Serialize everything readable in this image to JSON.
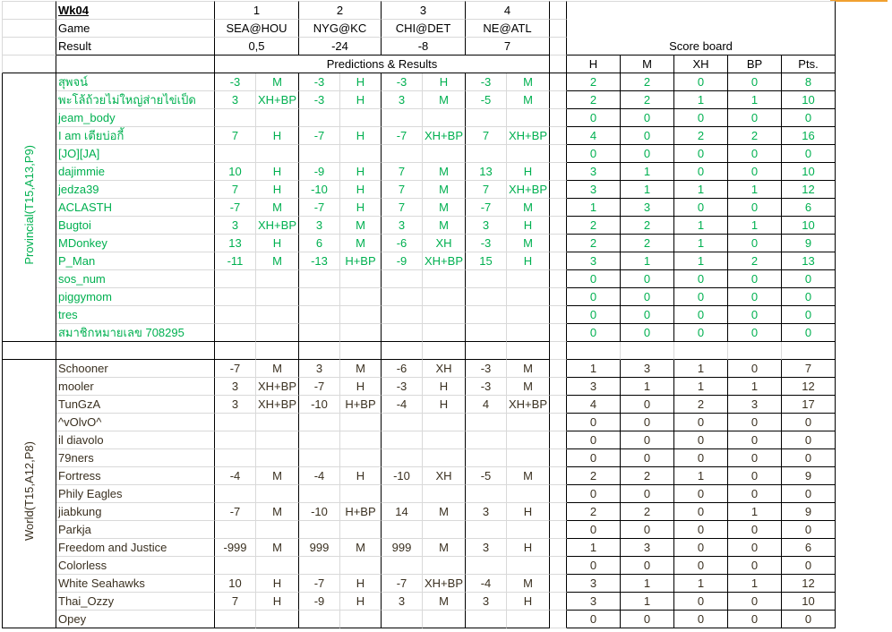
{
  "header": {
    "week": "Wk04",
    "game_label": "Game",
    "result_label": "Result",
    "predictions_label": "Predictions & Results",
    "scoreboard_title": "Score board",
    "scoreboard_columns": [
      "H",
      "M",
      "XH",
      "BP",
      "Pts."
    ],
    "games": [
      {
        "number": "1",
        "matchup": "SEA@HOU",
        "result": "0,5"
      },
      {
        "number": "2",
        "matchup": "NYG@KC",
        "result": "-24"
      },
      {
        "number": "3",
        "matchup": "CHI@DET",
        "result": "-8"
      },
      {
        "number": "4",
        "matchup": "NE@ATL",
        "result": "7"
      }
    ]
  },
  "colors": {
    "provincial": "#00b050",
    "world": "#3a3020",
    "header": "#000000",
    "selection": "#f0a030"
  },
  "sections": [
    {
      "label": "Provincial(T15,A13,P9)",
      "color_key": "provincial",
      "rows": [
        {
          "name": "สุพจน์",
          "picks": [
            "-3",
            "M",
            "-3",
            "H",
            "-3",
            "H",
            "-3",
            "M"
          ],
          "score": [
            "2",
            "2",
            "0",
            "0",
            "8"
          ]
        },
        {
          "name": "พะโล้ถ้วยไม่ใหญ่ส่ายไข่เป็ด",
          "picks": [
            "3",
            "XH+BP",
            "-3",
            "H",
            "3",
            "M",
            "-5",
            "M"
          ],
          "score": [
            "2",
            "2",
            "1",
            "1",
            "10"
          ]
        },
        {
          "name": "jeam_body",
          "picks": [
            "",
            "",
            "",
            "",
            "",
            "",
            "",
            ""
          ],
          "score": [
            "0",
            "0",
            "0",
            "0",
            "0"
          ]
        },
        {
          "name": "I am เตียบ่อกี้",
          "picks": [
            "7",
            "H",
            "-7",
            "H",
            "-7",
            "XH+BP",
            "7",
            "XH+BP"
          ],
          "score": [
            "4",
            "0",
            "2",
            "2",
            "16"
          ]
        },
        {
          "name": "[JO][JA]",
          "picks": [
            "",
            "",
            "",
            "",
            "",
            "",
            "",
            ""
          ],
          "score": [
            "0",
            "0",
            "0",
            "0",
            "0"
          ]
        },
        {
          "name": "dajimmie",
          "picks": [
            "10",
            "H",
            "-9",
            "H",
            "7",
            "M",
            "13",
            "H"
          ],
          "score": [
            "3",
            "1",
            "0",
            "0",
            "10"
          ]
        },
        {
          "name": "jedza39",
          "picks": [
            "7",
            "H",
            "-10",
            "H",
            "7",
            "M",
            "7",
            "XH+BP"
          ],
          "score": [
            "3",
            "1",
            "1",
            "1",
            "12"
          ]
        },
        {
          "name": "ACLASTH",
          "picks": [
            "-7",
            "M",
            "-7",
            "H",
            "7",
            "M",
            "-7",
            "M"
          ],
          "score": [
            "1",
            "3",
            "0",
            "0",
            "6"
          ]
        },
        {
          "name": "Bugtoi",
          "picks": [
            "3",
            "XH+BP",
            "3",
            "M",
            "3",
            "M",
            "3",
            "H"
          ],
          "score": [
            "2",
            "2",
            "1",
            "1",
            "10"
          ]
        },
        {
          "name": "MDonkey",
          "picks": [
            "13",
            "H",
            "6",
            "M",
            "-6",
            "XH",
            "-3",
            "M"
          ],
          "score": [
            "2",
            "2",
            "1",
            "0",
            "9"
          ]
        },
        {
          "name": "P_Man",
          "picks": [
            "-11",
            "M",
            "-13",
            "H+BP",
            "-9",
            "XH+BP",
            "15",
            "H"
          ],
          "score": [
            "3",
            "1",
            "1",
            "2",
            "13"
          ]
        },
        {
          "name": "sos_num",
          "picks": [
            "",
            "",
            "",
            "",
            "",
            "",
            "",
            ""
          ],
          "score": [
            "0",
            "0",
            "0",
            "0",
            "0"
          ]
        },
        {
          "name": "piggymom",
          "picks": [
            "",
            "",
            "",
            "",
            "",
            "",
            "",
            ""
          ],
          "score": [
            "0",
            "0",
            "0",
            "0",
            "0"
          ]
        },
        {
          "name": "tres",
          "picks": [
            "",
            "",
            "",
            "",
            "",
            "",
            "",
            ""
          ],
          "score": [
            "0",
            "0",
            "0",
            "0",
            "0"
          ]
        },
        {
          "name": "สมาชิกหมายเลข   708295",
          "picks": [
            "",
            "",
            "",
            "",
            "",
            "",
            "",
            ""
          ],
          "score": [
            "0",
            "0",
            "0",
            "0",
            "0"
          ]
        }
      ]
    },
    {
      "label": "World(T15,A12,P8)",
      "color_key": "world",
      "rows": [
        {
          "name": "Schooner",
          "picks": [
            "-7",
            "M",
            "3",
            "M",
            "-6",
            "XH",
            "-3",
            "M"
          ],
          "score": [
            "1",
            "3",
            "1",
            "0",
            "7"
          ]
        },
        {
          "name": "mooler",
          "picks": [
            "3",
            "XH+BP",
            "-7",
            "H",
            "-3",
            "H",
            "-3",
            "M"
          ],
          "score": [
            "3",
            "1",
            "1",
            "1",
            "12"
          ]
        },
        {
          "name": "TunGzA",
          "picks": [
            "3",
            "XH+BP",
            "-10",
            "H+BP",
            "-4",
            "H",
            "4",
            "XH+BP"
          ],
          "score": [
            "4",
            "0",
            "2",
            "3",
            "17"
          ]
        },
        {
          "name": "^vOlvO^",
          "picks": [
            "",
            "",
            "",
            "",
            "",
            "",
            "",
            ""
          ],
          "score": [
            "0",
            "0",
            "0",
            "0",
            "0"
          ]
        },
        {
          "name": "il diavolo",
          "picks": [
            "",
            "",
            "",
            "",
            "",
            "",
            "",
            ""
          ],
          "score": [
            "0",
            "0",
            "0",
            "0",
            "0"
          ]
        },
        {
          "name": "79ners",
          "picks": [
            "",
            "",
            "",
            "",
            "",
            "",
            "",
            ""
          ],
          "score": [
            "0",
            "0",
            "0",
            "0",
            "0"
          ]
        },
        {
          "name": "Fortress",
          "picks": [
            "-4",
            "M",
            "-4",
            "H",
            "-10",
            "XH",
            "-5",
            "M"
          ],
          "score": [
            "2",
            "2",
            "1",
            "0",
            "9"
          ]
        },
        {
          "name": "Phily Eagles",
          "picks": [
            "",
            "",
            "",
            "",
            "",
            "",
            "",
            ""
          ],
          "score": [
            "0",
            "0",
            "0",
            "0",
            "0"
          ]
        },
        {
          "name": "jiabkung",
          "picks": [
            "-7",
            "M",
            "-10",
            "H+BP",
            "14",
            "M",
            "3",
            "H"
          ],
          "score": [
            "2",
            "2",
            "0",
            "1",
            "9"
          ]
        },
        {
          "name": "Parkja",
          "picks": [
            "",
            "",
            "",
            "",
            "",
            "",
            "",
            ""
          ],
          "score": [
            "0",
            "0",
            "0",
            "0",
            "0"
          ]
        },
        {
          "name": "Freedom and Justice",
          "picks": [
            "-999",
            "M",
            "999",
            "M",
            "999",
            "M",
            "3",
            "H"
          ],
          "score": [
            "1",
            "3",
            "0",
            "0",
            "6"
          ]
        },
        {
          "name": "Colorless",
          "picks": [
            "",
            "",
            "",
            "",
            "",
            "",
            "",
            ""
          ],
          "score": [
            "0",
            "0",
            "0",
            "0",
            "0"
          ]
        },
        {
          "name": "White Seahawks",
          "picks": [
            "10",
            "H",
            "-7",
            "H",
            "-7",
            "XH+BP",
            "-4",
            "M"
          ],
          "score": [
            "3",
            "1",
            "1",
            "1",
            "12"
          ]
        },
        {
          "name": "Thai_Ozzy",
          "picks": [
            "7",
            "H",
            "-9",
            "H",
            "3",
            "M",
            "3",
            "H"
          ],
          "score": [
            "3",
            "1",
            "0",
            "0",
            "10"
          ]
        },
        {
          "name": "Opey",
          "picks": [
            "",
            "",
            "",
            "",
            "",
            "",
            "",
            ""
          ],
          "score": [
            "0",
            "0",
            "0",
            "0",
            "0"
          ]
        }
      ]
    }
  ]
}
